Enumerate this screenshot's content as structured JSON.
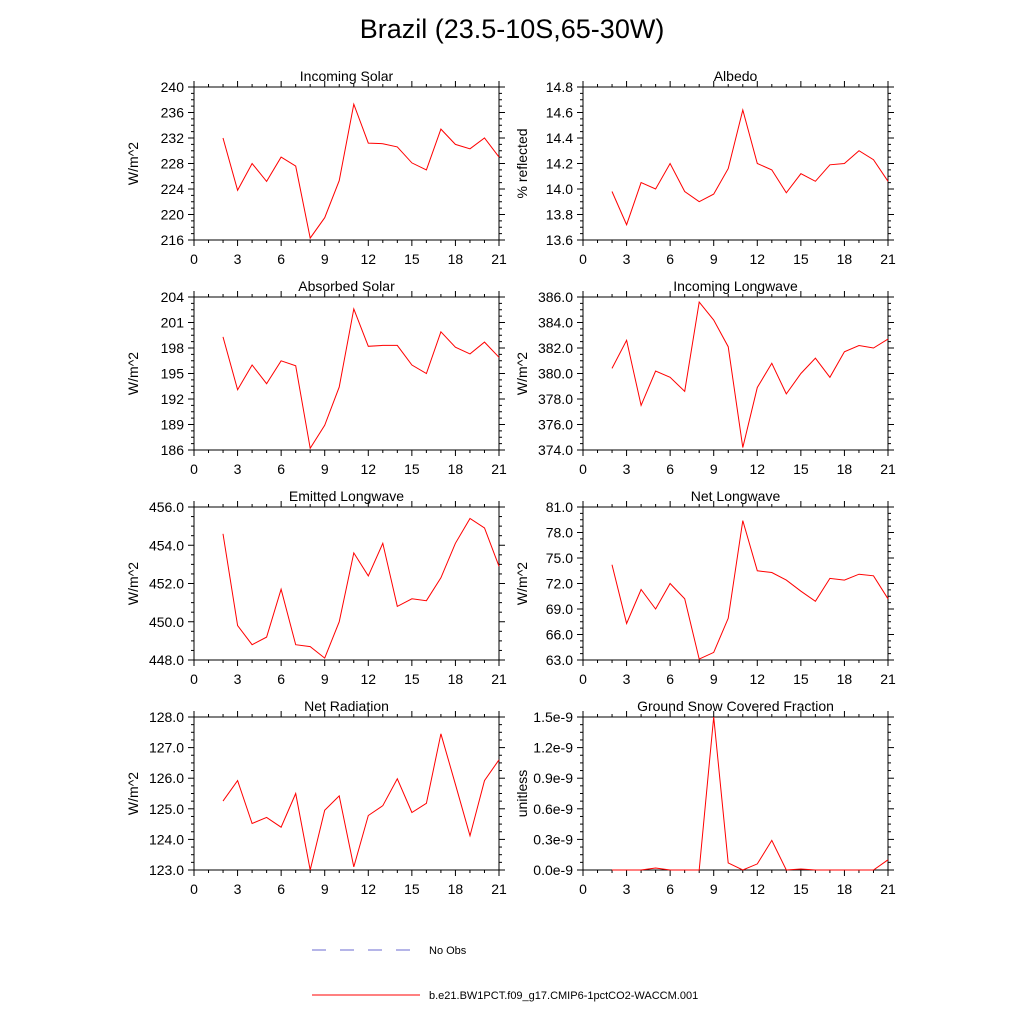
{
  "title": "Brazil (23.5-10S,65-30W)",
  "chart_data": [
    {
      "type": "line",
      "title": "Incoming Solar",
      "ylabel": "W/m^2",
      "xlim": [
        0,
        21
      ],
      "xticks": [
        0,
        3,
        6,
        9,
        12,
        15,
        18,
        21
      ],
      "ylim": [
        216,
        240
      ],
      "yticks": [
        "216",
        "220",
        "224",
        "228",
        "232",
        "236",
        "240"
      ],
      "x": [
        2,
        3,
        4,
        5,
        6,
        7,
        8,
        9,
        10,
        11,
        12,
        13,
        14,
        15,
        16,
        17,
        18,
        19,
        20,
        21
      ],
      "series": [
        {
          "name": "b.e21.BW1PCT.f09_g17.CMIP6-1pctCO2-WACCM.001",
          "values": [
            232.0,
            223.8,
            228.0,
            225.2,
            229.0,
            227.6,
            216.3,
            219.5,
            225.3,
            237.3,
            231.2,
            231.1,
            230.6,
            228.1,
            227.0,
            233.4,
            231.0,
            230.3,
            232.0,
            229.0
          ]
        }
      ]
    },
    {
      "type": "line",
      "title": "Albedo",
      "ylabel": "% reflected",
      "xlim": [
        0,
        21
      ],
      "xticks": [
        0,
        3,
        6,
        9,
        12,
        15,
        18,
        21
      ],
      "ylim": [
        13.6,
        14.8
      ],
      "yticks": [
        "13.6",
        "13.8",
        "14.0",
        "14.2",
        "14.4",
        "14.6",
        "14.8"
      ],
      "x": [
        2,
        3,
        4,
        5,
        6,
        7,
        8,
        9,
        10,
        11,
        12,
        13,
        14,
        15,
        16,
        17,
        18,
        19,
        20,
        21
      ],
      "series": [
        {
          "name": "b.e21.BW1PCT.f09_g17.CMIP6-1pctCO2-WACCM.001",
          "values": [
            13.98,
            13.72,
            14.05,
            14.0,
            14.2,
            13.98,
            13.9,
            13.96,
            14.16,
            14.62,
            14.2,
            14.15,
            13.97,
            14.12,
            14.06,
            14.19,
            14.2,
            14.3,
            14.23,
            14.06
          ]
        }
      ]
    },
    {
      "type": "line",
      "title": "Absorbed Solar",
      "ylabel": "W/m^2",
      "xlim": [
        0,
        21
      ],
      "xticks": [
        0,
        3,
        6,
        9,
        12,
        15,
        18,
        21
      ],
      "ylim": [
        186,
        204
      ],
      "yticks": [
        "186",
        "189",
        "192",
        "195",
        "198",
        "201",
        "204"
      ],
      "x": [
        2,
        3,
        4,
        5,
        6,
        7,
        8,
        9,
        10,
        11,
        12,
        13,
        14,
        15,
        16,
        17,
        18,
        19,
        20,
        21
      ],
      "series": [
        {
          "name": "b.e21.BW1PCT.f09_g17.CMIP6-1pctCO2-WACCM.001",
          "values": [
            199.3,
            193.1,
            196.0,
            193.8,
            196.5,
            195.9,
            186.2,
            188.9,
            193.4,
            202.6,
            198.2,
            198.3,
            198.3,
            196.0,
            195.0,
            199.9,
            198.1,
            197.3,
            198.7,
            196.9
          ]
        }
      ]
    },
    {
      "type": "line",
      "title": "Incoming Longwave",
      "ylabel": "W/m^2",
      "xlim": [
        0,
        21
      ],
      "xticks": [
        0,
        3,
        6,
        9,
        12,
        15,
        18,
        21
      ],
      "ylim": [
        374.0,
        386.0
      ],
      "yticks": [
        "374.0",
        "376.0",
        "378.0",
        "380.0",
        "382.0",
        "384.0",
        "386.0"
      ],
      "x": [
        2,
        3,
        4,
        5,
        6,
        7,
        8,
        9,
        10,
        11,
        12,
        13,
        14,
        15,
        16,
        17,
        18,
        19,
        20,
        21
      ],
      "series": [
        {
          "name": "b.e21.BW1PCT.f09_g17.CMIP6-1pctCO2-WACCM.001",
          "values": [
            380.4,
            382.6,
            377.5,
            380.2,
            379.7,
            378.6,
            385.6,
            384.2,
            382.1,
            374.2,
            378.9,
            380.8,
            378.4,
            380.0,
            381.2,
            379.7,
            381.7,
            382.2,
            382.0,
            382.7
          ]
        }
      ]
    },
    {
      "type": "line",
      "title": "Emitted Longwave",
      "ylabel": "W/m^2",
      "xlim": [
        0,
        21
      ],
      "xticks": [
        0,
        3,
        6,
        9,
        12,
        15,
        18,
        21
      ],
      "ylim": [
        448.0,
        456.0
      ],
      "yticks": [
        "448.0",
        "450.0",
        "452.0",
        "454.0",
        "456.0"
      ],
      "x": [
        2,
        3,
        4,
        5,
        6,
        7,
        8,
        9,
        10,
        11,
        12,
        13,
        14,
        15,
        16,
        17,
        18,
        19,
        20,
        21
      ],
      "series": [
        {
          "name": "b.e21.BW1PCT.f09_g17.CMIP6-1pctCO2-WACCM.001",
          "values": [
            454.6,
            449.8,
            448.8,
            449.2,
            451.7,
            448.8,
            448.7,
            448.1,
            450.0,
            453.6,
            452.4,
            454.1,
            450.8,
            451.2,
            451.1,
            452.3,
            454.1,
            455.4,
            454.9,
            452.9
          ]
        }
      ]
    },
    {
      "type": "line",
      "title": "Net Longwave",
      "ylabel": "W/m^2",
      "xlim": [
        0,
        21
      ],
      "xticks": [
        0,
        3,
        6,
        9,
        12,
        15,
        18,
        21
      ],
      "ylim": [
        63.0,
        81.0
      ],
      "yticks": [
        "63.0",
        "66.0",
        "69.0",
        "72.0",
        "75.0",
        "78.0",
        "81.0"
      ],
      "x": [
        2,
        3,
        4,
        5,
        6,
        7,
        8,
        9,
        10,
        11,
        12,
        13,
        14,
        15,
        16,
        17,
        18,
        19,
        20,
        21
      ],
      "series": [
        {
          "name": "b.e21.BW1PCT.f09_g17.CMIP6-1pctCO2-WACCM.001",
          "values": [
            74.2,
            67.3,
            71.3,
            69.0,
            72.0,
            70.2,
            63.1,
            63.9,
            67.9,
            79.4,
            73.5,
            73.3,
            72.4,
            71.1,
            69.9,
            72.6,
            72.4,
            73.1,
            72.9,
            70.2
          ]
        }
      ]
    },
    {
      "type": "line",
      "title": "Net Radiation",
      "ylabel": "W/m^2",
      "xlim": [
        0,
        21
      ],
      "xticks": [
        0,
        3,
        6,
        9,
        12,
        15,
        18,
        21
      ],
      "ylim": [
        123.0,
        128.0
      ],
      "yticks": [
        "123.0",
        "124.0",
        "125.0",
        "126.0",
        "127.0",
        "128.0"
      ],
      "x": [
        2,
        3,
        4,
        5,
        6,
        7,
        8,
        9,
        10,
        11,
        12,
        13,
        14,
        15,
        16,
        17,
        18,
        19,
        20,
        21
      ],
      "series": [
        {
          "name": "b.e21.BW1PCT.f09_g17.CMIP6-1pctCO2-WACCM.001",
          "values": [
            125.25,
            125.92,
            124.52,
            124.72,
            124.4,
            125.5,
            123.0,
            124.95,
            125.42,
            123.1,
            124.78,
            125.1,
            125.98,
            124.88,
            125.18,
            127.45,
            125.8,
            124.12,
            125.92,
            126.6
          ]
        }
      ]
    },
    {
      "type": "line",
      "title": "Ground Snow Covered Fraction",
      "ylabel": "unitless",
      "xlim": [
        0,
        21
      ],
      "xticks": [
        0,
        3,
        6,
        9,
        12,
        15,
        18,
        21
      ],
      "ylim": [
        0,
        1.5e-09
      ],
      "yticks": [
        "0.0e-9",
        "0.3e-9",
        "0.6e-9",
        "0.9e-9",
        "1.2e-9",
        "1.5e-9"
      ],
      "x": [
        2,
        3,
        4,
        5,
        6,
        7,
        8,
        9,
        10,
        11,
        12,
        13,
        14,
        15,
        16,
        17,
        18,
        19,
        20,
        21
      ],
      "series": [
        {
          "name": "b.e21.BW1PCT.f09_g17.CMIP6-1pctCO2-WACCM.001",
          "values": [
            0,
            0,
            0,
            2e-11,
            0,
            0,
            0,
            1.5e-09,
            7e-11,
            0,
            6e-11,
            2.9e-10,
            0,
            1e-11,
            0,
            0,
            0,
            0,
            0,
            1e-10
          ]
        }
      ]
    }
  ],
  "legend": [
    {
      "label": "No Obs",
      "style": "dashed",
      "color": "#6b6bd0"
    },
    {
      "label": "b.e21.BW1PCT.f09_g17.CMIP6-1pctCO2-WACCM.001",
      "style": "solid",
      "color": "#ff0000"
    }
  ]
}
